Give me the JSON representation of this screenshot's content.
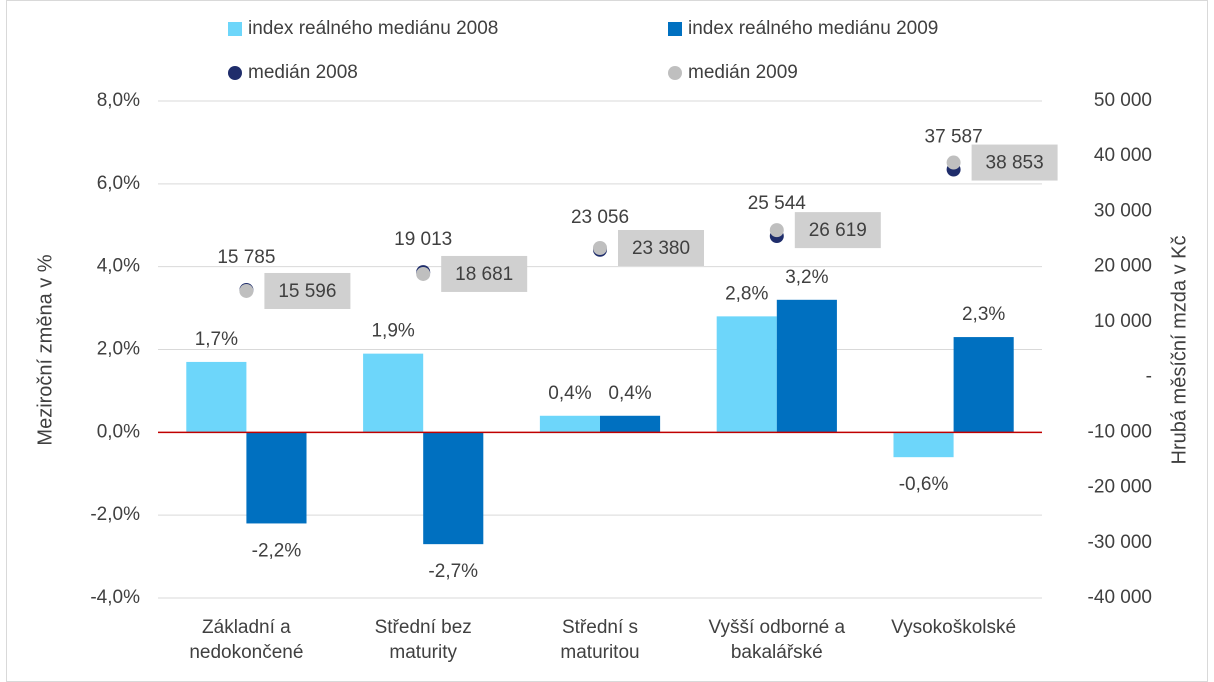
{
  "chart_data": {
    "type": "bar",
    "y_label": "Meziroční změna v %",
    "y2_label": "Hrubá měsíční mzda v Kč",
    "categories": [
      [
        "Základní a",
        "nedokončené"
      ],
      [
        "Střední bez",
        "maturity"
      ],
      [
        "Střední s",
        "maturitou"
      ],
      [
        "Vyšší odborné a",
        "bakalářské"
      ],
      [
        "Vysokoškolské"
      ]
    ],
    "series": [
      {
        "name": "index reálného mediánu 2008",
        "type": "bar",
        "color": "#6dd6fa",
        "values": [
          1.7,
          1.9,
          0.4,
          2.8,
          -0.6
        ],
        "value_labels": [
          "1,7%",
          "1,9%",
          "0,4%",
          "2,8%",
          "-0,6%"
        ]
      },
      {
        "name": "index reálného mediánu 2009",
        "type": "bar",
        "color": "#0070c0",
        "values": [
          -2.2,
          -2.7,
          0.4,
          3.2,
          2.3
        ],
        "value_labels": [
          "-2,2%",
          "-2,7%",
          "0,4%",
          "3,2%",
          "2,3%"
        ]
      },
      {
        "name": "medián 2008",
        "type": "scatter",
        "axis": "y2",
        "color": "#1f2d6b",
        "values": [
          15785,
          19013,
          23056,
          25544,
          37587
        ],
        "value_labels": [
          "15 785",
          "19 013",
          "23 056",
          "25 544",
          "37 587"
        ]
      },
      {
        "name": "medián 2009",
        "type": "scatter",
        "axis": "y2",
        "color": "#bfbfbf",
        "values": [
          15596,
          18681,
          23380,
          26619,
          38853
        ],
        "value_labels": [
          "15 596",
          "18 681",
          "23 380",
          "26 619",
          "38 853"
        ]
      }
    ],
    "ylim": [
      -4,
      8
    ],
    "yticks": [
      {
        "value": -4,
        "label": "-4,0%"
      },
      {
        "value": -2,
        "label": "-2,0%"
      },
      {
        "value": 0,
        "label": "0,0%"
      },
      {
        "value": 2,
        "label": "2,0%"
      },
      {
        "value": 4,
        "label": "4,0%"
      },
      {
        "value": 6,
        "label": "6,0%"
      },
      {
        "value": 8,
        "label": "8,0%"
      }
    ],
    "y2lim": [
      -40000,
      50000
    ],
    "y2ticks": [
      {
        "value": -40000,
        "label": "-40 000"
      },
      {
        "value": -30000,
        "label": "-30 000"
      },
      {
        "value": -20000,
        "label": "-20 000"
      },
      {
        "value": -10000,
        "label": "-10 000"
      },
      {
        "value": 0,
        "label": "-"
      },
      {
        "value": 10000,
        "label": "10 000"
      },
      {
        "value": 20000,
        "label": "20 000"
      },
      {
        "value": 30000,
        "label": "30 000"
      },
      {
        "value": 40000,
        "label": "40 000"
      },
      {
        "value": 50000,
        "label": "50 000"
      }
    ],
    "grid": true,
    "zero_line_color": "#c00000"
  }
}
